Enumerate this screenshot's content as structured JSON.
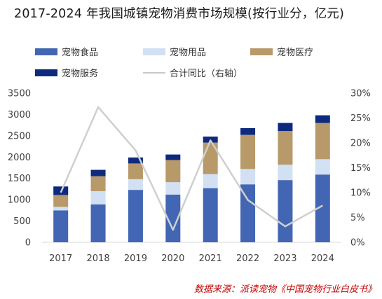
{
  "title": "2017-2024 年我国城镇宠物消费市场规模(按行业分，亿元)",
  "source": "数据来源：派读宠物《中国宠物行业白皮书》",
  "chart_data": {
    "type": "bar",
    "stacked": true,
    "categories": [
      "2017",
      "2018",
      "2019",
      "2020",
      "2021",
      "2022",
      "2023",
      "2024"
    ],
    "series": [
      {
        "name": "宠物食品",
        "color": "#4266b3",
        "values": [
          750,
          890,
          1230,
          1120,
          1270,
          1360,
          1460,
          1590
        ]
      },
      {
        "name": "宠物用品",
        "color": "#d2e0f4",
        "values": [
          80,
          310,
          250,
          290,
          330,
          360,
          360,
          360
        ]
      },
      {
        "name": "宠物医疗",
        "color": "#b8996a",
        "values": [
          280,
          350,
          370,
          520,
          740,
          800,
          790,
          850
        ]
      },
      {
        "name": "宠物服务",
        "color": "#0e2a7e",
        "values": [
          200,
          150,
          140,
          130,
          140,
          160,
          190,
          180
        ]
      }
    ],
    "line": {
      "name": "合计同比（右轴）",
      "color": "#cfcfcf",
      "values": [
        0.1,
        0.272,
        0.185,
        0.025,
        0.205,
        0.085,
        0.032,
        0.074
      ]
    },
    "y_left": {
      "min": 0,
      "max": 3500,
      "ticks": [
        "0",
        "500",
        "1000",
        "1500",
        "2000",
        "2500",
        "3000",
        "3500"
      ]
    },
    "y_right": {
      "min": 0,
      "max": 0.3,
      "ticks": [
        "0%",
        "5%",
        "10%",
        "15%",
        "20%",
        "25%",
        "30%"
      ]
    },
    "legend_position": "top",
    "grid": false
  }
}
